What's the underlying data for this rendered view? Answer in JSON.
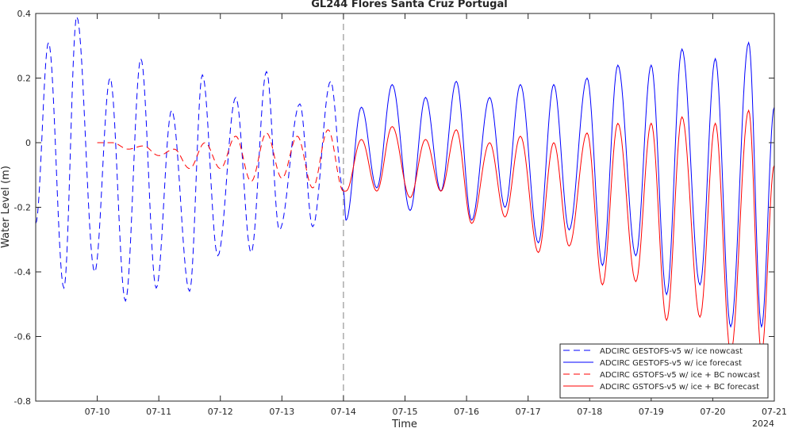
{
  "chart_data": {
    "type": "line",
    "title": "GL244 Flores Santa Cruz Portugal",
    "xlabel": "Time",
    "ylabel": "Water Level (m)",
    "x_axis_year_label": "2024",
    "xlim": [
      "2024-07-09",
      "2024-07-21"
    ],
    "ylim": [
      -0.8,
      0.4
    ],
    "x_ticks": [
      {
        "date": "2024-07-10",
        "label": "07-10"
      },
      {
        "date": "2024-07-11",
        "label": "07-11"
      },
      {
        "date": "2024-07-12",
        "label": "07-12"
      },
      {
        "date": "2024-07-13",
        "label": "07-13"
      },
      {
        "date": "2024-07-14",
        "label": "07-14"
      },
      {
        "date": "2024-07-15",
        "label": "07-15"
      },
      {
        "date": "2024-07-16",
        "label": "07-16"
      },
      {
        "date": "2024-07-17",
        "label": "07-17"
      },
      {
        "date": "2024-07-18",
        "label": "07-18"
      },
      {
        "date": "2024-07-19",
        "label": "07-19"
      },
      {
        "date": "2024-07-20",
        "label": "07-20"
      },
      {
        "date": "2024-07-21",
        "label": "07-21"
      }
    ],
    "y_ticks": [
      {
        "value": 0.4,
        "label": "0.4"
      },
      {
        "value": 0.2,
        "label": "0.2"
      },
      {
        "value": 0,
        "label": "0"
      },
      {
        "value": -0.2,
        "label": "-0.2"
      },
      {
        "value": -0.4,
        "label": "-0.4"
      },
      {
        "value": -0.6,
        "label": "-0.6"
      },
      {
        "value": -0.8,
        "label": "-0.8"
      }
    ],
    "grid": false,
    "legend_position": "bottom-right",
    "vertical_marker": {
      "date": "2024-07-14",
      "style": "dashed",
      "color": "#808080"
    },
    "series": [
      {
        "name": "ADCIRC GESTOFS-v5 w/ ice nowcast",
        "color": "#0000ff",
        "line_style": "dashed",
        "x": [
          "2024-07-09T00:00",
          "2024-07-09T05:00",
          "2024-07-09T11:00",
          "2024-07-09T16:00",
          "2024-07-09T23:00",
          "2024-07-10T05:00",
          "2024-07-10T11:00",
          "2024-07-10T17:00",
          "2024-07-10T23:00",
          "2024-07-11T05:00",
          "2024-07-11T12:00",
          "2024-07-11T17:00",
          "2024-07-11T23:00",
          "2024-07-12T06:00",
          "2024-07-12T12:00",
          "2024-07-12T18:00",
          "2024-07-12T23:00",
          "2024-07-13T07:00",
          "2024-07-13T12:00",
          "2024-07-13T19:00",
          "2024-07-14T00:00"
        ],
        "y": [
          -0.25,
          0.31,
          -0.45,
          0.39,
          -0.4,
          0.2,
          -0.49,
          0.26,
          -0.45,
          0.1,
          -0.46,
          0.21,
          -0.35,
          0.14,
          -0.34,
          0.22,
          -0.27,
          0.12,
          -0.26,
          0.19,
          -0.15
        ]
      },
      {
        "name": "ADCIRC GESTOFS-v5 w/ ice forecast",
        "color": "#0000ff",
        "line_style": "solid",
        "x": [
          "2024-07-14T00:00",
          "2024-07-14T01:00",
          "2024-07-14T07:00",
          "2024-07-14T13:00",
          "2024-07-14T19:00",
          "2024-07-15T02:00",
          "2024-07-15T08:00",
          "2024-07-15T14:00",
          "2024-07-15T20:00",
          "2024-07-16T02:00",
          "2024-07-16T09:00",
          "2024-07-16T15:00",
          "2024-07-16T21:00",
          "2024-07-17T04:00",
          "2024-07-17T10:00",
          "2024-07-17T16:00",
          "2024-07-17T23:00",
          "2024-07-18T05:00",
          "2024-07-18T11:00",
          "2024-07-18T18:00",
          "2024-07-19T00:00",
          "2024-07-19T06:00",
          "2024-07-19T12:00",
          "2024-07-19T19:00",
          "2024-07-20T01:00",
          "2024-07-20T07:00",
          "2024-07-20T14:00",
          "2024-07-20T19:00",
          "2024-07-21T00:00"
        ],
        "y": [
          -0.15,
          -0.24,
          0.11,
          -0.14,
          0.18,
          -0.21,
          0.14,
          -0.15,
          0.19,
          -0.24,
          0.14,
          -0.2,
          0.18,
          -0.31,
          0.18,
          -0.27,
          0.2,
          -0.38,
          0.24,
          -0.35,
          0.24,
          -0.47,
          0.29,
          -0.44,
          0.26,
          -0.57,
          0.31,
          -0.57,
          0.11
        ]
      },
      {
        "name": "ADCIRC GSTOFS-v5 w/ ice + BC nowcast",
        "color": "#ff0000",
        "line_style": "dashed",
        "x": [
          "2024-07-10T00:00",
          "2024-07-10T06:00",
          "2024-07-10T12:00",
          "2024-07-10T18:00",
          "2024-07-11T00:00",
          "2024-07-11T06:00",
          "2024-07-11T12:00",
          "2024-07-11T18:00",
          "2024-07-12T00:00",
          "2024-07-12T06:00",
          "2024-07-12T12:00",
          "2024-07-12T18:00",
          "2024-07-13T00:00",
          "2024-07-13T06:00",
          "2024-07-13T12:00",
          "2024-07-13T18:00",
          "2024-07-14T00:00"
        ],
        "y": [
          0.0,
          0.0,
          -0.02,
          -0.01,
          -0.04,
          -0.02,
          -0.08,
          0.0,
          -0.08,
          0.02,
          -0.12,
          0.03,
          -0.11,
          0.02,
          -0.14,
          0.04,
          -0.15
        ]
      },
      {
        "name": "ADCIRC GSTOFS-v5 w/ ice + BC forecast",
        "color": "#ff0000",
        "line_style": "solid",
        "x": [
          "2024-07-14T00:00",
          "2024-07-14T01:00",
          "2024-07-14T07:00",
          "2024-07-14T13:00",
          "2024-07-14T19:00",
          "2024-07-15T02:00",
          "2024-07-15T08:00",
          "2024-07-15T14:00",
          "2024-07-15T20:00",
          "2024-07-16T02:00",
          "2024-07-16T09:00",
          "2024-07-16T15:00",
          "2024-07-16T21:00",
          "2024-07-17T04:00",
          "2024-07-17T10:00",
          "2024-07-17T16:00",
          "2024-07-17T23:00",
          "2024-07-18T05:00",
          "2024-07-18T11:00",
          "2024-07-18T18:00",
          "2024-07-19T00:00",
          "2024-07-19T06:00",
          "2024-07-19T12:00",
          "2024-07-19T19:00",
          "2024-07-20T01:00",
          "2024-07-20T07:00",
          "2024-07-20T14:00",
          "2024-07-20T19:00",
          "2024-07-21T00:00"
        ],
        "y": [
          -0.15,
          -0.15,
          0.01,
          -0.15,
          0.05,
          -0.17,
          0.01,
          -0.15,
          0.04,
          -0.25,
          0.0,
          -0.23,
          0.02,
          -0.34,
          0.0,
          -0.32,
          0.03,
          -0.44,
          0.06,
          -0.43,
          0.06,
          -0.55,
          0.08,
          -0.54,
          0.06,
          -0.65,
          0.1,
          -0.65,
          -0.07
        ]
      }
    ]
  }
}
